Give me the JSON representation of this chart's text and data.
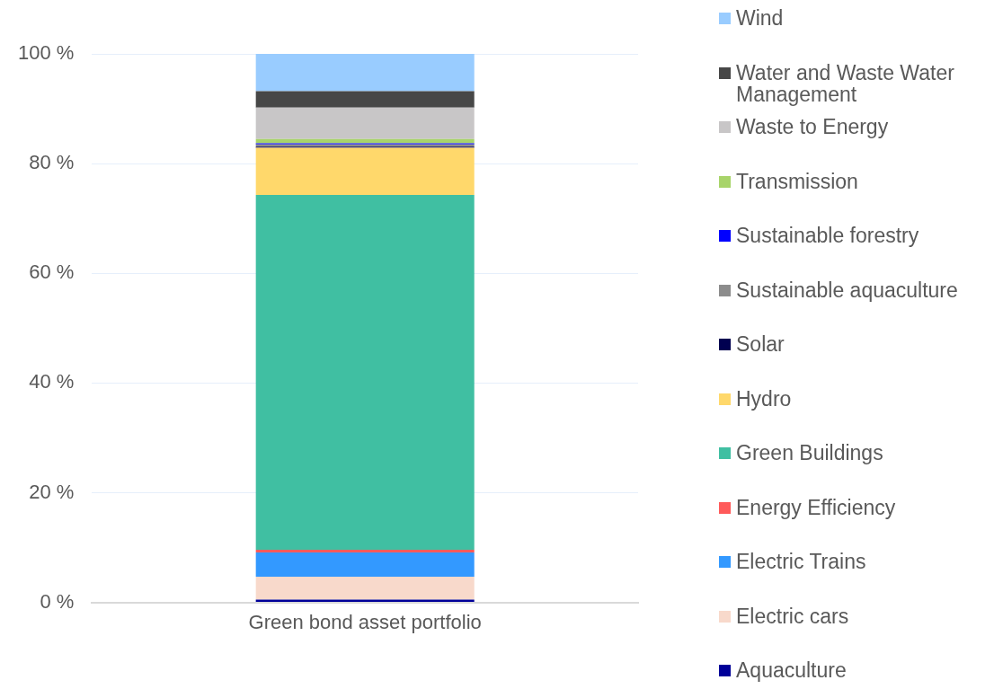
{
  "chart_data": {
    "type": "bar",
    "stacked": true,
    "categories": [
      "Green bond asset portfolio"
    ],
    "series": [
      {
        "name": "Aquaculture",
        "color": "#000099",
        "values": [
          0.5
        ]
      },
      {
        "name": "Electric cars",
        "color": "#f8d9cb",
        "values": [
          4.2
        ]
      },
      {
        "name": "Electric Trains",
        "color": "#3399ff",
        "values": [
          4.4
        ]
      },
      {
        "name": "Energy Efficiency",
        "color": "#ff5a5a",
        "values": [
          0.5
        ]
      },
      {
        "name": "Green Buildings",
        "color": "#40bfa2",
        "values": [
          64.7
        ]
      },
      {
        "name": "Hydro",
        "color": "#ffd86b",
        "values": [
          8.6
        ]
      },
      {
        "name": "Solar",
        "color": "#000050",
        "values": [
          0.2
        ]
      },
      {
        "name": "Sustainable aquaculture",
        "color": "#8c8c8c",
        "values": [
          0.4
        ]
      },
      {
        "name": "Sustainable forestry",
        "color": "#0000ff",
        "values": [
          0.2
        ]
      },
      {
        "name": "Transmission",
        "color": "#a8d46a",
        "values": [
          0.8
        ]
      },
      {
        "name": "Waste to Energy",
        "color": "#c8c6c7",
        "values": [
          5.7
        ]
      },
      {
        "name": "Water and Waste Water Management",
        "color": "#474747",
        "values": [
          3.0
        ]
      },
      {
        "name": "Wind",
        "color": "#99ccff",
        "values": [
          6.8
        ]
      }
    ],
    "ylim": [
      0,
      100
    ],
    "yticks": [
      {
        "value": 0,
        "label": "0 %"
      },
      {
        "value": 20,
        "label": "20 %"
      },
      {
        "value": 40,
        "label": "40 %"
      },
      {
        "value": 60,
        "label": "60 %"
      },
      {
        "value": 80,
        "label": "80 %"
      },
      {
        "value": 100,
        "label": "100 %"
      }
    ],
    "grid": "y",
    "legend": "right"
  }
}
